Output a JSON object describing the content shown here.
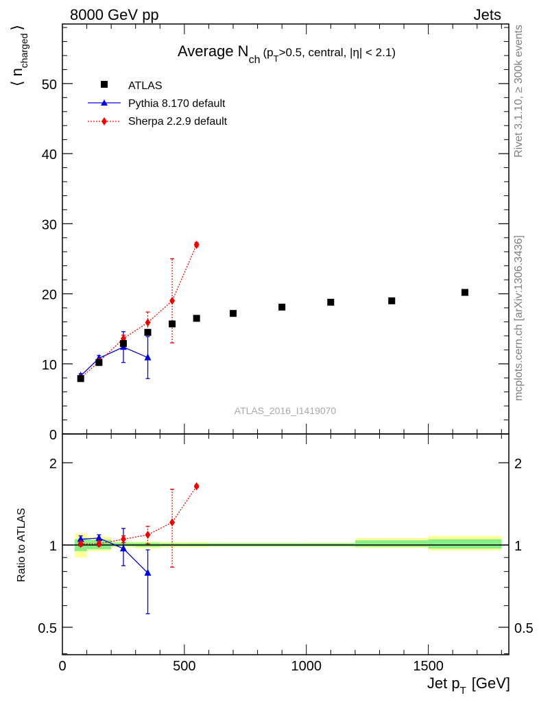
{
  "header": {
    "left": "8000 GeV pp",
    "right": "Jets"
  },
  "side_labels": {
    "rivet": "Rivet 3.1.10, ≥ 300k events",
    "mcplots": "mcplots.cern.ch [arXiv:1306.3436]"
  },
  "watermark": "ATLAS_2016_I1419070",
  "chart_data": [
    {
      "type": "scatter",
      "panel": "main",
      "title": "Average N_ch (p_T>0.5, central, |η| < 2.1)",
      "title_parts": {
        "main": "Average N",
        "sub": "ch",
        "rest_pre": "(p",
        "sub2": "T",
        "rest_post": ">0.5, central, |η| < 2.1)"
      },
      "ylabel": "⟨ n_charged ⟩",
      "ylabel_parts": {
        "main": "⟨ n",
        "sub": "charged",
        "close": "⟩"
      },
      "xlim": [
        0,
        1830
      ],
      "ylim": [
        0,
        58.5
      ],
      "yticks": [
        0,
        10,
        20,
        30,
        40,
        50
      ],
      "ytick_labels": [
        "0",
        "10",
        "20",
        "30",
        "40",
        "50"
      ],
      "legend_position": "top-left",
      "grid": false,
      "series": [
        {
          "name": "ATLAS",
          "color": "#000000",
          "marker": "square",
          "x": [
            75,
            150,
            250,
            350,
            450,
            550,
            700,
            900,
            1100,
            1350,
            1650
          ],
          "y": [
            7.9,
            10.2,
            12.9,
            14.5,
            15.7,
            16.5,
            17.2,
            18.1,
            18.8,
            19.0,
            20.2
          ]
        },
        {
          "name": "Pythia 8.170 default",
          "color": "#0000dd",
          "marker": "triangle",
          "line": "solid",
          "x": [
            75,
            150,
            250,
            350
          ],
          "y": [
            8.3,
            10.8,
            12.4,
            10.9
          ],
          "yerr": [
            0.3,
            0.4,
            2.2,
            3.0
          ]
        },
        {
          "name": "Sherpa 2.2.9 default",
          "color": "#ee0000",
          "marker": "diamond",
          "line": "dotted",
          "x": [
            75,
            150,
            250,
            350,
            450,
            550
          ],
          "y": [
            8.0,
            10.3,
            13.6,
            15.9,
            19.0,
            27.0
          ],
          "yerr": [
            0.3,
            0.4,
            0.5,
            1.5,
            6.0,
            0.3
          ]
        }
      ]
    },
    {
      "type": "scatter",
      "panel": "ratio",
      "ylabel": "Ratio to ATLAS",
      "xlabel": "Jet p_T [GeV]",
      "xlabel_parts": {
        "main": "Jet p",
        "sub": "T",
        "unit": "[GeV]"
      },
      "xlim": [
        0,
        1830
      ],
      "ylim": [
        0.35,
        2.4
      ],
      "xticks": [
        0,
        500,
        1000,
        1500
      ],
      "xtick_labels": [
        "0",
        "500",
        "1000",
        "1500"
      ],
      "yticks": [
        0.5,
        1,
        2
      ],
      "ytick_labels": [
        "0.5",
        "1",
        "2"
      ],
      "bands": [
        {
          "x0": 50,
          "x1": 100,
          "y0": 0.9,
          "y1": 1.1,
          "inner0": 0.95,
          "inner1": 1.05
        },
        {
          "x0": 100,
          "x1": 200,
          "y0": 0.95,
          "y1": 1.07,
          "inner0": 0.965,
          "inner1": 1.045
        },
        {
          "x0": 200,
          "x1": 300,
          "y0": 0.98,
          "y1": 1.03,
          "inner0": 0.99,
          "inner1": 1.02
        },
        {
          "x0": 300,
          "x1": 400,
          "y0": 0.97,
          "y1": 1.03,
          "inner0": 0.985,
          "inner1": 1.02
        },
        {
          "x0": 400,
          "x1": 500,
          "y0": 0.98,
          "y1": 1.025,
          "inner0": 0.99,
          "inner1": 1.015
        },
        {
          "x0": 500,
          "x1": 600,
          "y0": 0.98,
          "y1": 1.025,
          "inner0": 0.99,
          "inner1": 1.015
        },
        {
          "x0": 600,
          "x1": 800,
          "y0": 0.985,
          "y1": 1.02,
          "inner0": 0.99,
          "inner1": 1.015
        },
        {
          "x0": 800,
          "x1": 1000,
          "y0": 0.985,
          "y1": 1.02,
          "inner0": 0.99,
          "inner1": 1.015
        },
        {
          "x0": 1000,
          "x1": 1200,
          "y0": 0.985,
          "y1": 1.02,
          "inner0": 0.99,
          "inner1": 1.015
        },
        {
          "x0": 1200,
          "x1": 1500,
          "y0": 0.975,
          "y1": 1.06,
          "inner0": 0.985,
          "inner1": 1.04
        },
        {
          "x0": 1500,
          "x1": 1800,
          "y0": 0.955,
          "y1": 1.08,
          "inner0": 0.97,
          "inner1": 1.05
        }
      ],
      "series": [
        {
          "name": "Pythia 8.170 default",
          "color": "#0000dd",
          "marker": "triangle",
          "line": "solid",
          "x": [
            75,
            150,
            250,
            350
          ],
          "y": [
            1.05,
            1.06,
            0.97,
            0.79
          ],
          "yerr_lo": [
            0.03,
            0.03,
            0.13,
            0.23
          ],
          "yerr_hi": [
            0.03,
            0.03,
            0.18,
            0.17
          ]
        },
        {
          "name": "Sherpa 2.2.9 default",
          "color": "#ee0000",
          "marker": "diamond",
          "line": "dotted",
          "x": [
            75,
            150,
            250,
            350,
            450,
            550
          ],
          "y": [
            1.01,
            1.01,
            1.05,
            1.09,
            1.21,
            1.64
          ],
          "yerr_lo": [
            0.02,
            0.02,
            0.03,
            0.08,
            0.38,
            0.02
          ],
          "yerr_hi": [
            0.02,
            0.02,
            0.03,
            0.08,
            0.39,
            0.02
          ]
        }
      ]
    }
  ]
}
